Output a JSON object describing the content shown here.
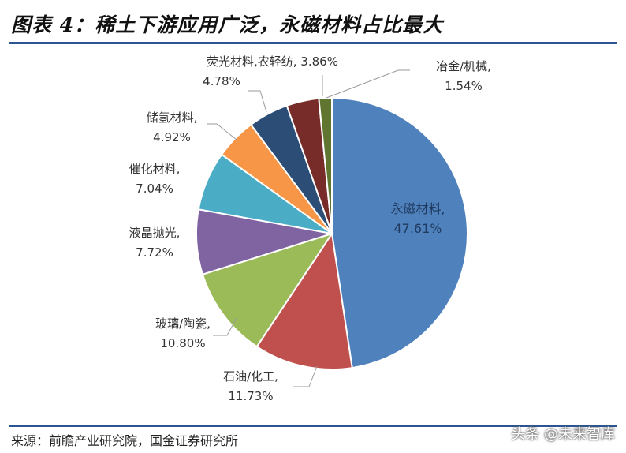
{
  "header": {
    "title": "图表 4：稀土下游应用广泛，永磁材料占比最大"
  },
  "footer": {
    "source": "来源：前瞻产业研究院，国金证券研究所",
    "watermark": "头条 @未来智库"
  },
  "chart_data": {
    "type": "pie",
    "title": "",
    "slices": [
      {
        "name": "永磁材料,",
        "value": 47.61,
        "label": "47.61%",
        "color": "#4f81bd"
      },
      {
        "name": "石油/化工,",
        "value": 11.73,
        "label": "11.73%",
        "color": "#c0504d"
      },
      {
        "name": "玻璃/陶瓷,",
        "value": 10.8,
        "label": "10.80%",
        "color": "#9bbb59"
      },
      {
        "name": "液晶抛光,",
        "value": 7.72,
        "label": "7.72%",
        "color": "#8064a2"
      },
      {
        "name": "催化材料,",
        "value": 7.04,
        "label": "7.04%",
        "color": "#4bacc6"
      },
      {
        "name": "储氢材料,",
        "value": 4.92,
        "label": "4.92%",
        "color": "#f79646"
      },
      {
        "name": "荧光材料,",
        "value": 4.78,
        "label": "4.78%",
        "color": "#2c4d75"
      },
      {
        "name": "农轻纺,",
        "value": 3.86,
        "label": "3.86%",
        "color": "#772c2a"
      },
      {
        "name": "冶金/机械,",
        "value": 1.54,
        "label": "1.54%",
        "color": "#5f7530"
      }
    ]
  }
}
